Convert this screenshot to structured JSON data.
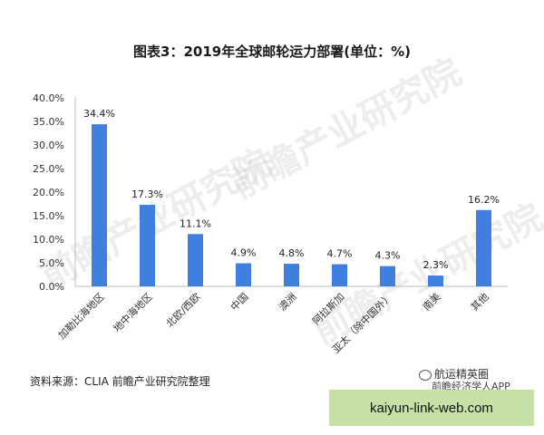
{
  "chart_data": {
    "type": "bar",
    "title": "图表3：2019年全球邮轮运力部署(单位：%)",
    "categories": [
      "加勒比海地区",
      "地中海地区",
      "北欧/西欧",
      "中国",
      "澳洲",
      "阿拉斯加",
      "亚太（除中国外）",
      "南美",
      "其他"
    ],
    "values": [
      34.4,
      17.3,
      11.1,
      4.9,
      4.8,
      4.7,
      4.3,
      2.3,
      16.2
    ],
    "data_labels": [
      "34.4%",
      "17.3%",
      "11.1%",
      "4.9%",
      "4.8%",
      "4.7%",
      "4.3%",
      "2.3%",
      "16.2%"
    ],
    "y_ticks": [
      "0.0%",
      "5.0%",
      "10.0%",
      "15.0%",
      "20.0%",
      "25.0%",
      "30.0%",
      "35.0%",
      "40.0%"
    ],
    "ylim": [
      0,
      40
    ],
    "grid": false,
    "bar_color": "#3f7fe0"
  },
  "footer": {
    "source": "资料来源：CLIA 前瞻产业研究院整理",
    "wechat_name": "航运精英圈",
    "wechat_sub": "前瞻经济学人APP",
    "url": "kaiyun-link-web.com"
  },
  "watermark_text": "前瞻产业研究院"
}
